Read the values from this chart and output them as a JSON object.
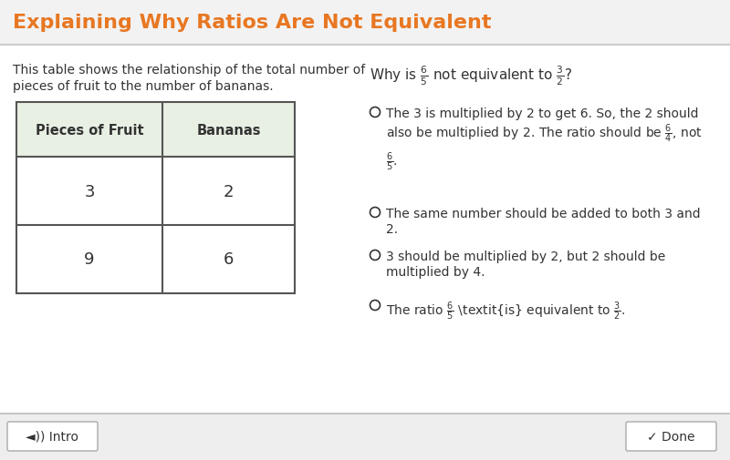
{
  "title": "Explaining Why Ratios Are Not Equivalent",
  "title_color": "#E87722",
  "title_bg_color": "#F2F2F2",
  "title_border_color": "#CCCCCC",
  "body_bg_color": "#FFFFFF",
  "description_line1": "This table shows the relationship of the total number of",
  "description_line2": "pieces of fruit to the number of bananas.",
  "table_header": [
    "Pieces of Fruit",
    "Bananas"
  ],
  "table_header_bg": "#E8F0E4",
  "table_data": [
    [
      "3",
      "2"
    ],
    [
      "9",
      "6"
    ]
  ],
  "table_border_color": "#555555",
  "footer_bg": "#EEEEEE",
  "footer_border_color": "#BBBBBB",
  "intro_label": "Intro",
  "done_label": "Done",
  "font_color": "#333333"
}
